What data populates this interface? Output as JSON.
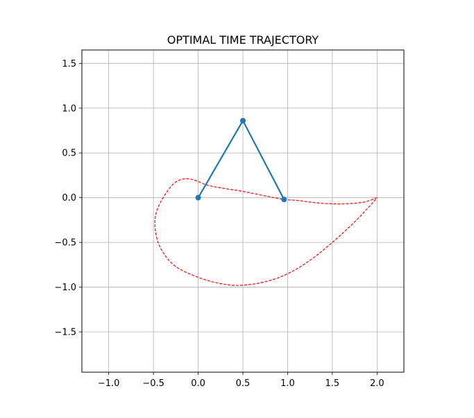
{
  "chart_data": {
    "type": "line",
    "title": "OPTIMAL TIME TRAJECTORY",
    "xlabel": "",
    "ylabel": "",
    "xlim": [
      -1.3,
      2.3
    ],
    "ylim": [
      -1.95,
      1.65
    ],
    "grid": true,
    "x_ticks": [
      -1.0,
      -0.5,
      0.0,
      0.5,
      1.0,
      1.5,
      2.0
    ],
    "x_tick_labels": [
      "−1.0",
      "−0.5",
      "0.0",
      "0.5",
      "1.0",
      "1.5",
      "2.0"
    ],
    "y_ticks": [
      1.5,
      1.0,
      0.5,
      0.0,
      -0.5,
      -1.0,
      -1.5
    ],
    "y_tick_labels": [
      "1.5",
      "1.0",
      "0.5",
      "0.0",
      "−0.5",
      "−1.0",
      "−1.5"
    ],
    "series": [
      {
        "style": "solid-with-markers",
        "color": "#1f77b4",
        "x": [
          0.0,
          0.5,
          0.96
        ],
        "y": [
          0.0,
          0.86,
          -0.02
        ]
      },
      {
        "style": "dashed",
        "color": "#ff0000",
        "x": [
          2.0,
          1.85,
          1.6,
          1.35,
          1.1,
          0.96,
          0.75,
          0.5,
          0.25,
          0.1,
          0.0,
          -0.1,
          -0.2,
          -0.3,
          -0.42,
          -0.48,
          -0.47,
          -0.4,
          -0.25,
          0.0,
          0.25,
          0.47,
          0.75,
          1.0,
          1.25,
          1.5,
          1.75,
          1.93,
          2.0
        ],
        "y": [
          0.0,
          -0.05,
          -0.07,
          -0.06,
          -0.03,
          -0.02,
          0.02,
          0.07,
          0.11,
          0.14,
          0.18,
          0.21,
          0.2,
          0.13,
          -0.05,
          -0.22,
          -0.42,
          -0.6,
          -0.77,
          -0.89,
          -0.96,
          -0.98,
          -0.94,
          -0.85,
          -0.7,
          -0.5,
          -0.27,
          -0.08,
          0.0
        ]
      }
    ]
  }
}
